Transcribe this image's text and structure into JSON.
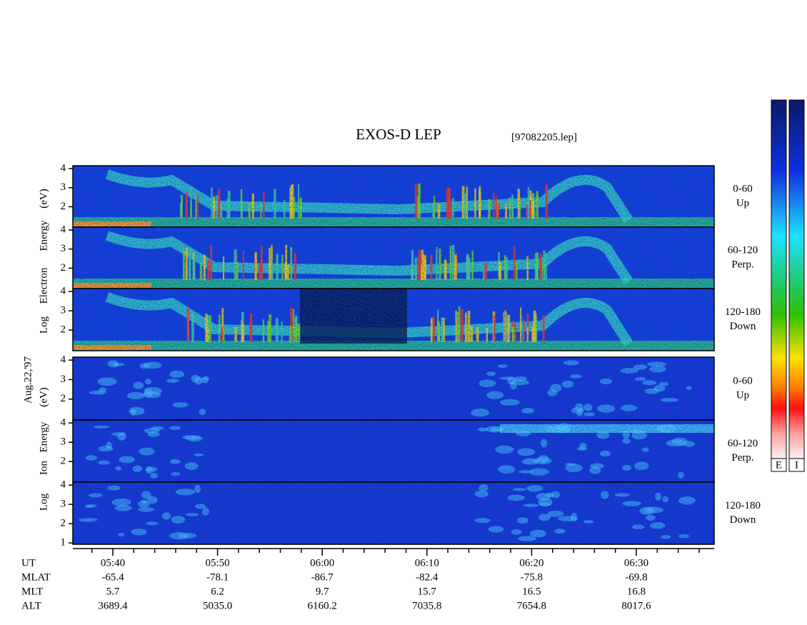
{
  "title": "EXOS-D LEP",
  "file": "[97082205.lep]",
  "date": "Aug.22,'97",
  "energy_ylim": [
    0.93,
    4.15
  ],
  "electron_axis_label": [
    "Log",
    "Electron",
    "Energy",
    "(eV)"
  ],
  "ion_axis_label": [
    "Log",
    "Ion",
    "Energy",
    "(eV)"
  ],
  "electron_panels": [
    {
      "angle": "0-60",
      "direction": "Up",
      "yticks": [
        2,
        3,
        4
      ]
    },
    {
      "angle": "60-120",
      "direction": "Perp.",
      "yticks": [
        2,
        3,
        4
      ]
    },
    {
      "angle": "120-180",
      "direction": "Down",
      "yticks": [
        2,
        3,
        4
      ]
    }
  ],
  "ion_panels": [
    {
      "angle": "0-60",
      "direction": "Up",
      "yticks": [
        2,
        3,
        4
      ]
    },
    {
      "angle": "60-120",
      "direction": "Perp.",
      "yticks": [
        2,
        3,
        4
      ]
    },
    {
      "angle": "120-180",
      "direction": "Down",
      "yticks": [
        1,
        2,
        3,
        4
      ]
    }
  ],
  "time_axis": {
    "rows": [
      {
        "label": "UT",
        "values": [
          "05:40",
          "05:50",
          "06:00",
          "06:10",
          "06:20",
          "06:30"
        ]
      },
      {
        "label": "MLAT",
        "values": [
          "-65.4",
          "-78.1",
          "-86.7",
          "-82.4",
          "-75.8",
          "-69.8"
        ]
      },
      {
        "label": "MLT",
        "values": [
          "5.7",
          "6.2",
          "9.7",
          "15.7",
          "16.5",
          "16.8"
        ]
      },
      {
        "label": "ALT",
        "values": [
          "3689.4",
          "5035.0",
          "6160.2",
          "7035.8",
          "7654.8",
          "8017.6"
        ]
      }
    ]
  },
  "colorbars": [
    "E",
    "I"
  ]
}
